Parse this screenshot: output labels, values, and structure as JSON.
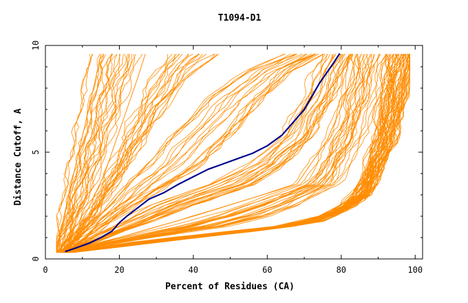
{
  "chart_data": {
    "type": "line",
    "title": "T1094-D1",
    "xlabel": "Percent of Residues (CA)",
    "ylabel": "Distance Cutoff, A",
    "xlim": [
      0,
      102
    ],
    "ylim": [
      0,
      10
    ],
    "x_ticks": [
      "0",
      "20",
      "40",
      "60",
      "80",
      "100"
    ],
    "y_ticks": [
      "0",
      "5",
      "10"
    ],
    "background_color": "#ff8c00",
    "highlight_color": "#00008b",
    "background_series_approx_count": 160,
    "highlight_series": {
      "name": "highlighted model",
      "points": [
        [
          5.5,
          0.35
        ],
        [
          8,
          0.5
        ],
        [
          12,
          0.75
        ],
        [
          15,
          1.0
        ],
        [
          18,
          1.3
        ],
        [
          20,
          1.7
        ],
        [
          22,
          2.0
        ],
        [
          25,
          2.4
        ],
        [
          28,
          2.8
        ],
        [
          32,
          3.1
        ],
        [
          36,
          3.5
        ],
        [
          40,
          3.85
        ],
        [
          44,
          4.2
        ],
        [
          48,
          4.45
        ],
        [
          52,
          4.7
        ],
        [
          56,
          4.95
        ],
        [
          60,
          5.3
        ],
        [
          64,
          5.8
        ],
        [
          67,
          6.4
        ],
        [
          70,
          7.0
        ],
        [
          72,
          7.6
        ],
        [
          74,
          8.2
        ],
        [
          76,
          8.7
        ],
        [
          78,
          9.2
        ],
        [
          79.5,
          9.6
        ]
      ]
    },
    "background_bundles": [
      {
        "name": "bundle-1",
        "points": [
          [
            3,
            0.3
          ],
          [
            4,
            1.0
          ],
          [
            5,
            2.0
          ],
          [
            7,
            3.5
          ],
          [
            9,
            5.0
          ],
          [
            11,
            6.5
          ],
          [
            13,
            8.0
          ],
          [
            15,
            9.6
          ]
        ]
      },
      {
        "name": "bundle-2",
        "points": [
          [
            4,
            0.3
          ],
          [
            8,
            1.2
          ],
          [
            12,
            2.5
          ],
          [
            16,
            4.0
          ],
          [
            19,
            5.5
          ],
          [
            22,
            7.0
          ],
          [
            25,
            8.5
          ],
          [
            27,
            9.6
          ]
        ]
      },
      {
        "name": "bundle-3",
        "points": [
          [
            5,
            0.3
          ],
          [
            12,
            1.5
          ],
          [
            20,
            3.0
          ],
          [
            28,
            4.5
          ],
          [
            36,
            6.0
          ],
          [
            45,
            7.5
          ],
          [
            55,
            8.8
          ],
          [
            68,
            9.6
          ]
        ]
      },
      {
        "name": "bundle-4",
        "points": [
          [
            6,
            0.3
          ],
          [
            15,
            1.2
          ],
          [
            30,
            2.5
          ],
          [
            45,
            3.5
          ],
          [
            58,
            4.5
          ],
          [
            66,
            5.8
          ],
          [
            72,
            7.5
          ],
          [
            78,
            9.6
          ]
        ]
      },
      {
        "name": "bundle-5",
        "points": [
          [
            5,
            0.3
          ],
          [
            20,
            1.0
          ],
          [
            40,
            2.0
          ],
          [
            55,
            2.8
          ],
          [
            68,
            3.5
          ],
          [
            76,
            5.5
          ],
          [
            81,
            7.5
          ],
          [
            84,
            9.6
          ]
        ]
      },
      {
        "name": "bundle-6",
        "points": [
          [
            5,
            0.3
          ],
          [
            25,
            0.8
          ],
          [
            45,
            1.2
          ],
          [
            62,
            1.5
          ],
          [
            75,
            2.0
          ],
          [
            82,
            2.5
          ],
          [
            88,
            4.0
          ],
          [
            92,
            6.5
          ],
          [
            95,
            9.6
          ]
        ]
      },
      {
        "name": "bundle-7",
        "points": [
          [
            6,
            0.3
          ],
          [
            30,
            0.8
          ],
          [
            55,
            1.3
          ],
          [
            72,
            1.7
          ],
          [
            80,
            2.3
          ],
          [
            86,
            3.0
          ],
          [
            92,
            5.5
          ],
          [
            95,
            8.0
          ],
          [
            97.5,
            9.6
          ]
        ]
      }
    ]
  }
}
